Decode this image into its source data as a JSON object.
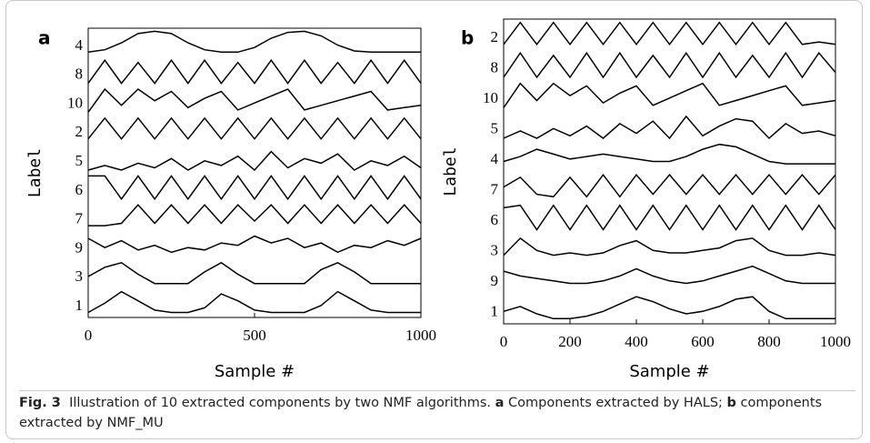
{
  "chart_data": [
    {
      "type": "line",
      "panel": "a",
      "x_label": "Sample #",
      "y_label": "Label",
      "xlim": [
        0,
        1000
      ],
      "xticks": [
        0,
        500,
        1000
      ],
      "color": "#000000",
      "x": [
        0,
        50,
        100,
        150,
        200,
        250,
        300,
        350,
        400,
        450,
        500,
        550,
        600,
        650,
        700,
        750,
        800,
        850,
        900,
        950,
        1000
      ],
      "series": [
        {
          "name": "4",
          "values": [
            0.1,
            0.2,
            0.5,
            0.9,
            1,
            0.9,
            0.5,
            0.2,
            0.1,
            0.1,
            0.3,
            0.7,
            0.95,
            1,
            0.8,
            0.4,
            0.15,
            0.1,
            0.1,
            0.1,
            0.1
          ]
        },
        {
          "name": "8",
          "values": [
            0,
            1,
            0,
            0.9,
            0,
            1,
            0,
            1,
            0,
            0.9,
            0,
            1,
            0,
            1,
            0,
            0.9,
            0,
            1,
            0,
            1,
            0
          ]
        },
        {
          "name": "10",
          "values": [
            0,
            1,
            0.3,
            1,
            0.5,
            0.9,
            0.2,
            0.6,
            0.9,
            0.1,
            0.4,
            0.7,
            1,
            0.1,
            0.3,
            0.5,
            0.7,
            0.9,
            0.1,
            0.2,
            0.3
          ]
        },
        {
          "name": "2",
          "values": [
            0.1,
            1,
            0.1,
            1,
            0.1,
            1,
            0.1,
            1,
            0.1,
            1,
            0.1,
            1,
            0.1,
            1,
            0.1,
            1,
            0.1,
            1,
            0.1,
            1,
            0.1
          ]
        },
        {
          "name": "5",
          "values": [
            0,
            0.2,
            0,
            0.3,
            0.1,
            0.5,
            0,
            0.4,
            0.2,
            0.6,
            0,
            0.8,
            0.1,
            0.5,
            0.3,
            0.7,
            0,
            0.4,
            0.2,
            0.6,
            0.1
          ]
        },
        {
          "name": "6",
          "values": [
            1,
            1,
            0,
            1,
            0,
            1,
            0,
            1,
            0,
            1,
            0,
            1,
            0,
            1,
            0,
            1,
            0,
            1,
            0,
            1,
            0
          ]
        },
        {
          "name": "7",
          "values": [
            0.1,
            0.1,
            0.2,
            1,
            0.2,
            1,
            0.2,
            1,
            0.2,
            1,
            0.3,
            1,
            0.2,
            1,
            0.2,
            1,
            0.2,
            1,
            0.2,
            1,
            0.2
          ]
        },
        {
          "name": "9",
          "values": [
            0.8,
            0.4,
            0.7,
            0.3,
            0.5,
            0.2,
            0.4,
            0.3,
            0.6,
            0.5,
            0.9,
            0.6,
            0.8,
            0.4,
            0.6,
            0.2,
            0.5,
            0.4,
            0.7,
            0.5,
            0.8
          ]
        },
        {
          "name": "3",
          "values": [
            0.4,
            0.8,
            1,
            0.5,
            0.1,
            0.1,
            0.1,
            0.6,
            1,
            0.5,
            0.1,
            0.1,
            0.1,
            0.1,
            0.7,
            1,
            0.6,
            0.1,
            0.1,
            0.1,
            0.1
          ]
        },
        {
          "name": "1",
          "values": [
            0.1,
            0.5,
            1,
            0.6,
            0.2,
            0.1,
            0.1,
            0.3,
            0.9,
            0.6,
            0.2,
            0.1,
            0.1,
            0.1,
            0.4,
            1,
            0.6,
            0.2,
            0.1,
            0.1,
            0.1
          ]
        }
      ]
    },
    {
      "type": "line",
      "panel": "b",
      "x_label": "Sample #",
      "y_label": "Label",
      "xlim": [
        0,
        1000
      ],
      "xticks": [
        0,
        200,
        400,
        600,
        800,
        1000
      ],
      "color": "#000000",
      "x": [
        0,
        50,
        100,
        150,
        200,
        250,
        300,
        350,
        400,
        450,
        500,
        550,
        600,
        650,
        700,
        750,
        800,
        850,
        900,
        950,
        1000
      ],
      "series": [
        {
          "name": "2",
          "values": [
            0.1,
            1,
            0.1,
            1,
            0.1,
            1,
            0.1,
            1,
            0.1,
            1,
            0.1,
            1,
            0.1,
            1,
            0.1,
            1,
            0.1,
            1,
            0.1,
            0.2,
            0.1
          ]
        },
        {
          "name": "8",
          "values": [
            0,
            1,
            0,
            0.9,
            0,
            1,
            0,
            1,
            0,
            0.9,
            0,
            1,
            0,
            1,
            0,
            0.9,
            0,
            1,
            0,
            1,
            0.2
          ]
        },
        {
          "name": "10",
          "values": [
            0,
            1,
            0.3,
            1,
            0.5,
            0.9,
            0.2,
            0.6,
            0.9,
            0.1,
            0.4,
            0.7,
            1,
            0.1,
            0.3,
            0.5,
            0.7,
            0.9,
            0.1,
            0.2,
            0.3
          ]
        },
        {
          "name": "5",
          "values": [
            0,
            0.3,
            0,
            0.4,
            0.1,
            0.5,
            0,
            0.6,
            0.2,
            0.7,
            0,
            0.9,
            0.1,
            0.5,
            0.8,
            0.7,
            0,
            0.6,
            0.2,
            0.3,
            0.1
          ]
        },
        {
          "name": "4",
          "values": [
            0.3,
            0.5,
            0.8,
            0.6,
            0.4,
            0.5,
            0.6,
            0.5,
            0.4,
            0.3,
            0.3,
            0.5,
            0.8,
            1,
            0.9,
            0.6,
            0.3,
            0.2,
            0.2,
            0.2,
            0.2
          ]
        },
        {
          "name": "7",
          "values": [
            0.5,
            0.9,
            0.2,
            0.1,
            0.9,
            0.1,
            1,
            0.1,
            1,
            0.2,
            1,
            0.2,
            1,
            0.2,
            1,
            0.2,
            1,
            0.2,
            1,
            0.2,
            1
          ]
        },
        {
          "name": "6",
          "values": [
            0.9,
            1,
            0,
            1,
            0,
            1,
            0,
            1,
            0,
            1,
            0,
            1,
            0,
            1,
            0,
            1,
            0,
            1,
            0,
            1,
            0
          ]
        },
        {
          "name": "3",
          "values": [
            0.2,
            0.9,
            0.4,
            0.2,
            0.3,
            0.2,
            0.3,
            0.6,
            0.8,
            0.4,
            0.3,
            0.3,
            0.4,
            0.5,
            0.8,
            0.9,
            0.4,
            0.2,
            0.2,
            0.3,
            0.2
          ]
        },
        {
          "name": "9",
          "values": [
            0.8,
            0.6,
            0.5,
            0.4,
            0.3,
            0.3,
            0.4,
            0.6,
            0.9,
            0.6,
            0.4,
            0.3,
            0.4,
            0.6,
            0.8,
            1,
            0.7,
            0.4,
            0.3,
            0.3,
            0.3
          ]
        },
        {
          "name": "1",
          "values": [
            0.4,
            0.6,
            0.3,
            0.1,
            0.1,
            0.2,
            0.4,
            0.7,
            1,
            0.8,
            0.5,
            0.3,
            0.4,
            0.6,
            0.9,
            1,
            0.4,
            0.1,
            0.1,
            0.1,
            0.1
          ]
        }
      ]
    }
  ],
  "caption": {
    "label": "Fig. 3",
    "text": "Illustration of 10 extracted components by two NMF algorithms.",
    "items": [
      {
        "key": "a",
        "text": "Components extracted by HALS;"
      },
      {
        "key": "b",
        "text": "components extracted by NMF_MU"
      }
    ]
  }
}
